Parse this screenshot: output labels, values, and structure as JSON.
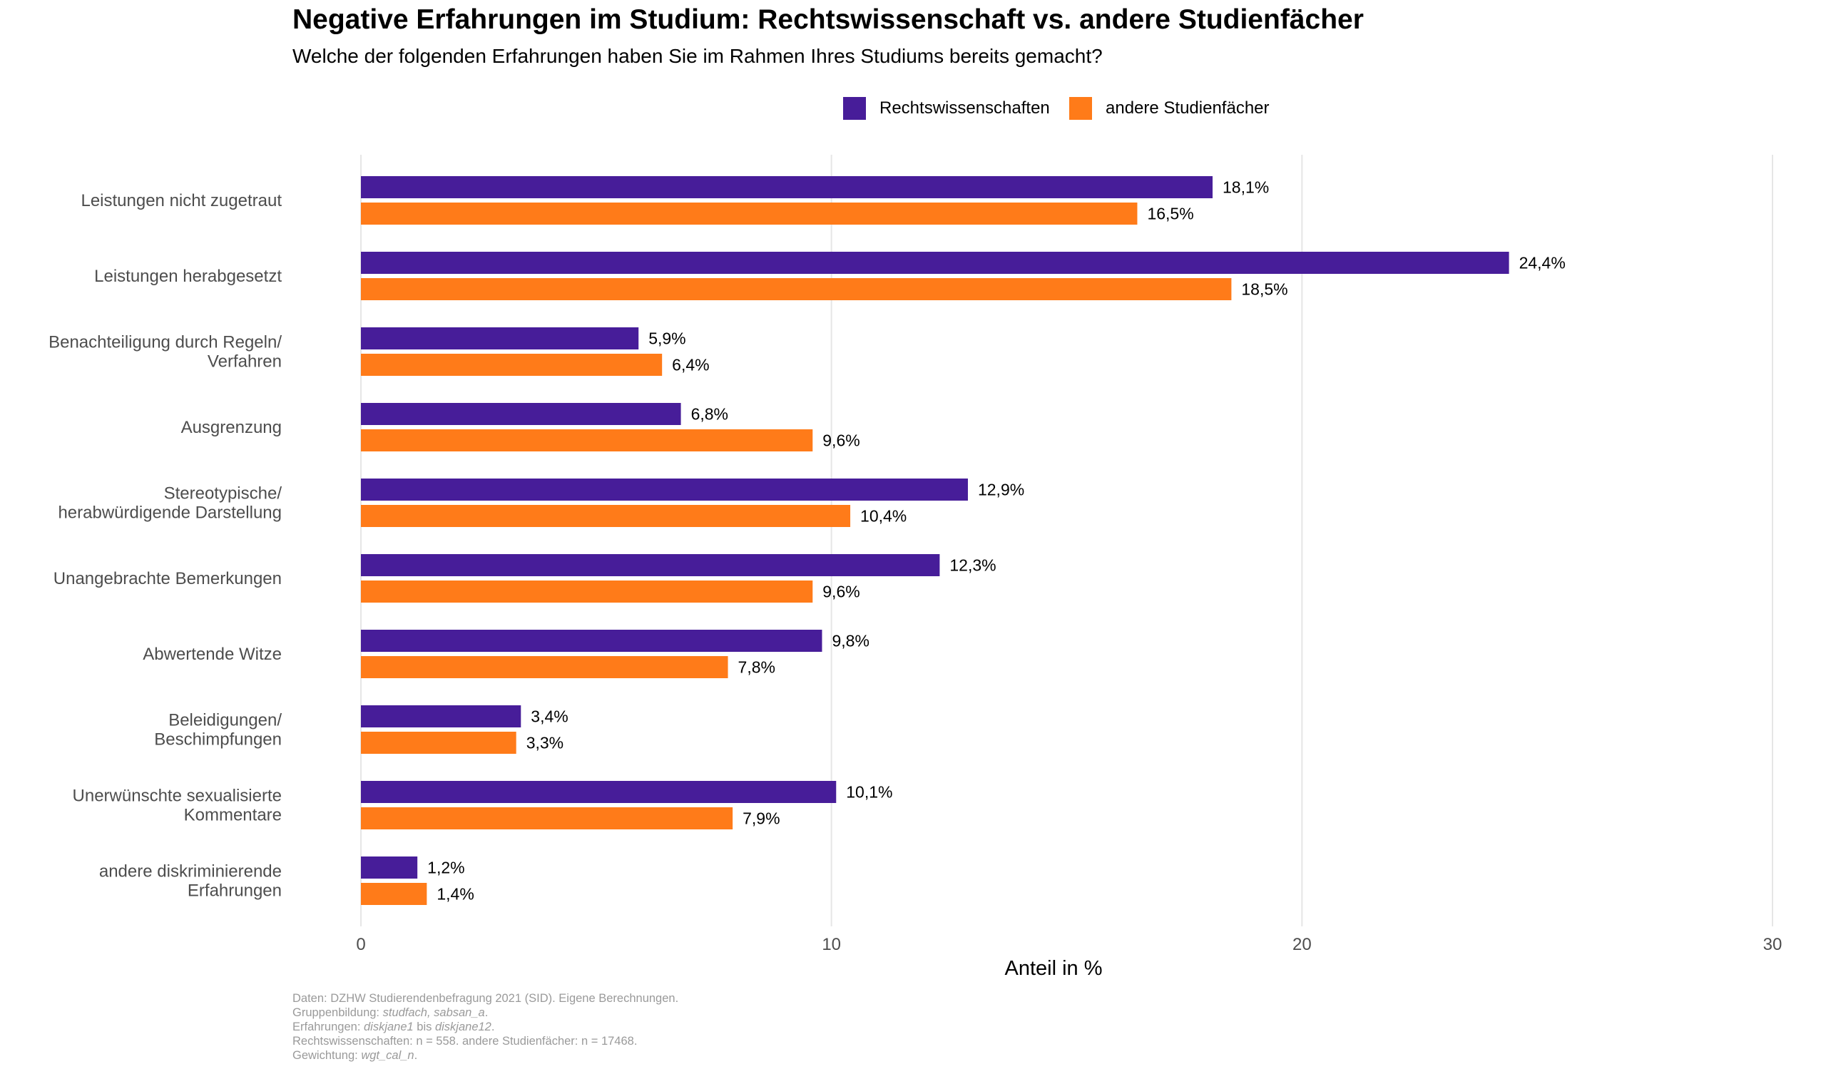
{
  "title": "Negative Erfahrungen im Studium: Rechtswissenschaft vs. andere Studienfächer",
  "subtitle": "Welche der folgenden Erfahrungen haben Sie im Rahmen Ihres Studiums bereits gemacht?",
  "legend": [
    {
      "label": "Rechtswissenschaften",
      "color": "#471D99"
    },
    {
      "label": "andere Studienfächer",
      "color": "#FF7B19"
    }
  ],
  "caption": {
    "line1": "Daten: DZHW Studierendenbefragung 2021 (SID). Eigene Berechnungen.",
    "line2_prefix": "Gruppenbildung: ",
    "line2_italic": "studfach, sabsan_a",
    "line2_suffix": ".",
    "line3_prefix": "Erfahrungen: ",
    "line3_italic1": "diskjane1",
    "line3_mid": " bis ",
    "line3_italic2": "diskjane12",
    "line3_suffix": ".",
    "line4": "Rechtswissenschaften: n = 558. andere Studienfächer: n = 17468.",
    "line5_prefix": "Gewichtung: ",
    "line5_italic": "wgt_cal_n",
    "line5_suffix": "."
  },
  "chart_data": {
    "type": "bar",
    "orientation": "horizontal",
    "title": "Negative Erfahrungen im Studium: Rechtswissenschaft vs. andere Studienfächer",
    "subtitle": "Welche der folgenden Erfahrungen haben Sie im Rahmen Ihres Studiums bereits gemacht?",
    "xlabel": "Anteil in %",
    "ylabel": "",
    "xlim": [
      0,
      30
    ],
    "xticks": [
      0,
      10,
      20,
      30
    ],
    "grid": "vertical major",
    "legend_position": "top",
    "categories": [
      [
        "Leistungen nicht zugetraut"
      ],
      [
        "Leistungen herabgesetzt"
      ],
      [
        "Benachteiligung durch Regeln/",
        "Verfahren"
      ],
      [
        "Ausgrenzung"
      ],
      [
        "Stereotypische/",
        "herabwürdigende Darstellung"
      ],
      [
        "Unangebrachte Bemerkungen"
      ],
      [
        "Abwertende Witze"
      ],
      [
        "Beleidigungen/",
        "Beschimpfungen"
      ],
      [
        "Unerwünschte sexualisierte",
        "Kommentare"
      ],
      [
        "andere diskriminierende",
        "Erfahrungen"
      ]
    ],
    "series": [
      {
        "name": "Rechtswissenschaften",
        "color": "#471D99",
        "values": [
          18.1,
          24.4,
          5.9,
          6.8,
          12.9,
          12.3,
          9.8,
          3.4,
          10.1,
          1.2
        ],
        "labels": [
          "18,1%",
          "24,4%",
          "5,9%",
          "6,8%",
          "12,9%",
          "12,3%",
          "9,8%",
          "3,4%",
          "10,1%",
          "1,2%"
        ]
      },
      {
        "name": "andere Studienfächer",
        "color": "#FF7B19",
        "values": [
          16.5,
          18.5,
          6.4,
          9.6,
          10.4,
          9.6,
          7.8,
          3.3,
          7.9,
          1.4
        ],
        "labels": [
          "16,5%",
          "18,5%",
          "6,4%",
          "9,6%",
          "10,4%",
          "9,6%",
          "7,8%",
          "3,3%",
          "7,9%",
          "1,4%"
        ]
      }
    ]
  }
}
